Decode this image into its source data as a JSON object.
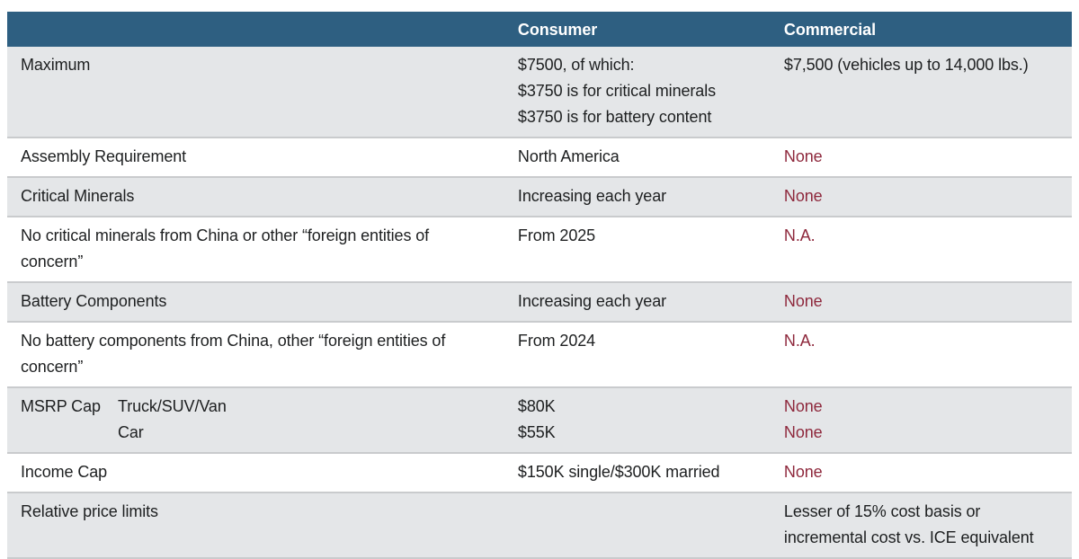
{
  "chart_data": {
    "type": "table",
    "title": "",
    "columns": [
      "",
      "Consumer",
      "Commercial"
    ],
    "header": {
      "consumer": "Consumer",
      "commercial": "Commercial"
    },
    "rows": [
      {
        "label": "Maximum",
        "consumer": [
          "$7500, of which:",
          "$3750 is for critical minerals",
          "$3750 is for battery content"
        ],
        "commercial": [
          "$7,500 (vehicles up to 14,000 lbs.)"
        ]
      },
      {
        "label": "Assembly Requirement",
        "consumer": [
          "North America"
        ],
        "commercial": [
          "None"
        ]
      },
      {
        "label": "Critical Minerals",
        "consumer": [
          "Increasing each year"
        ],
        "commercial": [
          "None"
        ]
      },
      {
        "label": "No critical minerals from China or other “foreign entities of concern”",
        "consumer": [
          "From 2025"
        ],
        "commercial": [
          "N.A."
        ]
      },
      {
        "label": "Battery Components",
        "consumer": [
          "Increasing each year"
        ],
        "commercial": [
          "None"
        ]
      },
      {
        "label": "No battery components from China, other “foreign entities of concern”",
        "consumer": [
          "From 2024"
        ],
        "commercial": [
          "N.A."
        ]
      },
      {
        "label": "MSRP Cap",
        "sublabels": [
          "Truck/SUV/Van",
          "Car"
        ],
        "consumer": [
          "$80K",
          "$55K"
        ],
        "commercial": [
          "None",
          "None"
        ]
      },
      {
        "label": "Income Cap",
        "consumer": [
          "$150K single/$300K married"
        ],
        "commercial": [
          "None"
        ]
      },
      {
        "label": "Relative price limits",
        "consumer": [],
        "commercial": [
          "Lesser of 15% cost basis or",
          "incremental cost vs. ICE equivalent"
        ]
      }
    ],
    "layout": {
      "shaded_row_indices": [
        0,
        2,
        4,
        6,
        8
      ],
      "red_commercial_row_indices": [
        1,
        2,
        3,
        4,
        5,
        6,
        7
      ]
    }
  },
  "colors": {
    "header_bg": "#2e5f81",
    "header_text": "#ffffff",
    "shaded_row_bg": "#e4e6e8",
    "white_row_bg": "#ffffff",
    "body_text": "#1d1f20",
    "negative_text": "#8e283c",
    "row_border": "#c9cbcd"
  }
}
